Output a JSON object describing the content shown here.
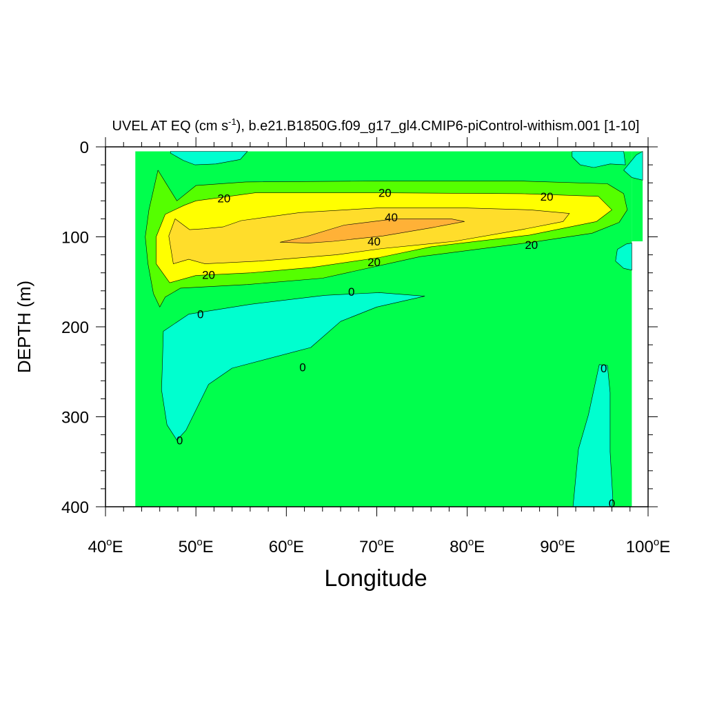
{
  "chart_data": {
    "type": "contour",
    "title": {
      "prefix": "UVEL AT EQ (cm s",
      "superscript": "-1",
      "suffix": "), b.e21.B1850G.f09_g17_gl4.CMIP6-piControl-withism.001 [1-10]"
    },
    "xlabel": "Longitude",
    "ylabel": "DEPTH (m)",
    "xlim": [
      40,
      100
    ],
    "ylim": [
      400,
      0
    ],
    "x_ticks": [
      {
        "value": 40,
        "num": "40",
        "sup": "o",
        "unit": "E"
      },
      {
        "value": 50,
        "num": "50",
        "sup": "o",
        "unit": "E"
      },
      {
        "value": 60,
        "num": "60",
        "sup": "o",
        "unit": "E"
      },
      {
        "value": 70,
        "num": "70",
        "sup": "o",
        "unit": "E"
      },
      {
        "value": 80,
        "num": "80",
        "sup": "o",
        "unit": "E"
      },
      {
        "value": 90,
        "num": "90",
        "sup": "o",
        "unit": "E"
      },
      {
        "value": 100,
        "num": "100",
        "sup": "o",
        "unit": "E"
      }
    ],
    "y_ticks": [
      {
        "value": 0,
        "label": "0"
      },
      {
        "value": 100,
        "label": "100"
      },
      {
        "value": 200,
        "label": "200"
      },
      {
        "value": 300,
        "label": "300"
      },
      {
        "value": 400,
        "label": "400"
      }
    ],
    "background_color": "#00ff4d",
    "fill_regions": [
      {
        "name": "negative-top-west",
        "color": "#00ffcf",
        "points": [
          [
            47.2,
            5
          ],
          [
            55.7,
            5
          ],
          [
            54.9,
            14
          ],
          [
            52.2,
            19
          ],
          [
            49.9,
            20
          ],
          [
            48.6,
            15
          ],
          [
            47.2,
            7
          ]
        ]
      },
      {
        "name": "negative-top-east",
        "color": "#00ffcf",
        "points": [
          [
            91.6,
            5
          ],
          [
            97.3,
            5
          ],
          [
            97.5,
            20
          ],
          [
            95.8,
            19
          ],
          [
            94,
            23
          ],
          [
            92.5,
            20
          ],
          [
            91.6,
            11
          ]
        ]
      },
      {
        "name": "negative-east-edge-upper",
        "color": "#00ffcf",
        "points": [
          [
            99.4,
            5
          ],
          [
            99.4,
            37
          ],
          [
            98.2,
            34
          ],
          [
            97.3,
            26
          ],
          [
            98.7,
            9
          ]
        ]
      },
      {
        "name": "negative-east-edge-lower",
        "color": "#00ffcf",
        "points": [
          [
            98.2,
            107
          ],
          [
            98.2,
            137
          ],
          [
            97.3,
            135
          ],
          [
            96.4,
            127
          ],
          [
            96.6,
            114
          ],
          [
            97.6,
            108
          ]
        ]
      },
      {
        "name": "positive-0-20",
        "color": "#55ff00",
        "points": [
          [
            44.8,
            70
          ],
          [
            45.8,
            26
          ],
          [
            47.9,
            60
          ],
          [
            50,
            43
          ],
          [
            55.5,
            39
          ],
          [
            70,
            38
          ],
          [
            86,
            38
          ],
          [
            95.5,
            41
          ],
          [
            97.3,
            52
          ],
          [
            97.7,
            70
          ],
          [
            96.8,
            84
          ],
          [
            93.8,
            96
          ],
          [
            87.2,
            106
          ],
          [
            74.8,
            122
          ],
          [
            64,
            146
          ],
          [
            55.7,
            153
          ],
          [
            48.3,
            157
          ],
          [
            46.6,
            167
          ],
          [
            46,
            178
          ],
          [
            45.3,
            163
          ],
          [
            44.7,
            130
          ],
          [
            44.4,
            100
          ]
        ]
      },
      {
        "name": "positive-20-30",
        "color": "#ffff00",
        "points": [
          [
            45.6,
            100
          ],
          [
            46.6,
            75
          ],
          [
            48.7,
            65
          ],
          [
            50,
            60
          ],
          [
            56.6,
            51
          ],
          [
            70,
            51
          ],
          [
            86,
            52
          ],
          [
            94.5,
            55
          ],
          [
            96,
            70
          ],
          [
            94.3,
            83
          ],
          [
            86.9,
            98
          ],
          [
            76,
            111
          ],
          [
            70.3,
            123
          ],
          [
            62.8,
            134
          ],
          [
            56.1,
            140
          ],
          [
            50,
            143
          ],
          [
            47.1,
            151
          ],
          [
            45.6,
            130
          ]
        ]
      },
      {
        "name": "positive-30-40",
        "color": "#ffdd2b",
        "points": [
          [
            47,
            99
          ],
          [
            47.7,
            80
          ],
          [
            49.3,
            92
          ],
          [
            50.9,
            91
          ],
          [
            53,
            89
          ],
          [
            55,
            82
          ],
          [
            61.5,
            73
          ],
          [
            70,
            68
          ],
          [
            80,
            68
          ],
          [
            87,
            70
          ],
          [
            91.3,
            74
          ],
          [
            90.6,
            83
          ],
          [
            86,
            92
          ],
          [
            78.6,
            105
          ],
          [
            70.6,
            113
          ],
          [
            65.5,
            120
          ],
          [
            57,
            127
          ],
          [
            51,
            130
          ],
          [
            49.2,
            125
          ],
          [
            47.5,
            130
          ]
        ]
      },
      {
        "name": "positive-40-plus",
        "color": "#ffb137",
        "points": [
          [
            59.3,
            106
          ],
          [
            62.1,
            100
          ],
          [
            66.4,
            87
          ],
          [
            72,
            80
          ],
          [
            78.2,
            80
          ],
          [
            79.7,
            83
          ],
          [
            76,
            90
          ],
          [
            70.7,
            99
          ],
          [
            65.2,
            105
          ],
          [
            62.4,
            107
          ]
        ]
      },
      {
        "name": "negative-subsurface-west",
        "color": "#00ffcf",
        "points": [
          [
            46.4,
            205
          ],
          [
            49.2,
            186
          ],
          [
            56,
            175
          ],
          [
            64.3,
            165
          ],
          [
            70.3,
            162
          ],
          [
            75.3,
            166
          ],
          [
            70,
            178
          ],
          [
            66,
            194
          ],
          [
            62.7,
            223
          ],
          [
            54,
            246
          ],
          [
            51.4,
            264
          ],
          [
            48.9,
            315
          ],
          [
            47.9,
            326
          ],
          [
            46.8,
            309
          ],
          [
            46.2,
            270
          ],
          [
            46.3,
            240
          ]
        ]
      },
      {
        "name": "negative-subsurface-east",
        "color": "#00ffcf",
        "points": [
          [
            91.7,
            400
          ],
          [
            92.3,
            336
          ],
          [
            93.4,
            298
          ],
          [
            94.6,
            242
          ],
          [
            95.5,
            243
          ],
          [
            95.8,
            273
          ],
          [
            95.8,
            339
          ],
          [
            96.1,
            390
          ],
          [
            96,
            400
          ]
        ]
      }
    ],
    "contour_labels": [
      {
        "value": "20",
        "x": 53.1,
        "y": 57
      },
      {
        "value": "20",
        "x": 70.9,
        "y": 51
      },
      {
        "value": "20",
        "x": 88.8,
        "y": 55
      },
      {
        "value": "20",
        "x": 87.1,
        "y": 109
      },
      {
        "value": "20",
        "x": 69.7,
        "y": 128
      },
      {
        "value": "20",
        "x": 51.4,
        "y": 142
      },
      {
        "value": "40",
        "x": 71.6,
        "y": 78
      },
      {
        "value": "40",
        "x": 69.7,
        "y": 105
      },
      {
        "value": "0",
        "x": 67.2,
        "y": 161
      },
      {
        "value": "0",
        "x": 50.5,
        "y": 186
      },
      {
        "value": "0",
        "x": 61.8,
        "y": 245
      },
      {
        "value": "0",
        "x": 48.2,
        "y": 326
      },
      {
        "value": "0",
        "x": 95.1,
        "y": 246
      },
      {
        "value": "0",
        "x": 96,
        "y": 396
      }
    ]
  }
}
